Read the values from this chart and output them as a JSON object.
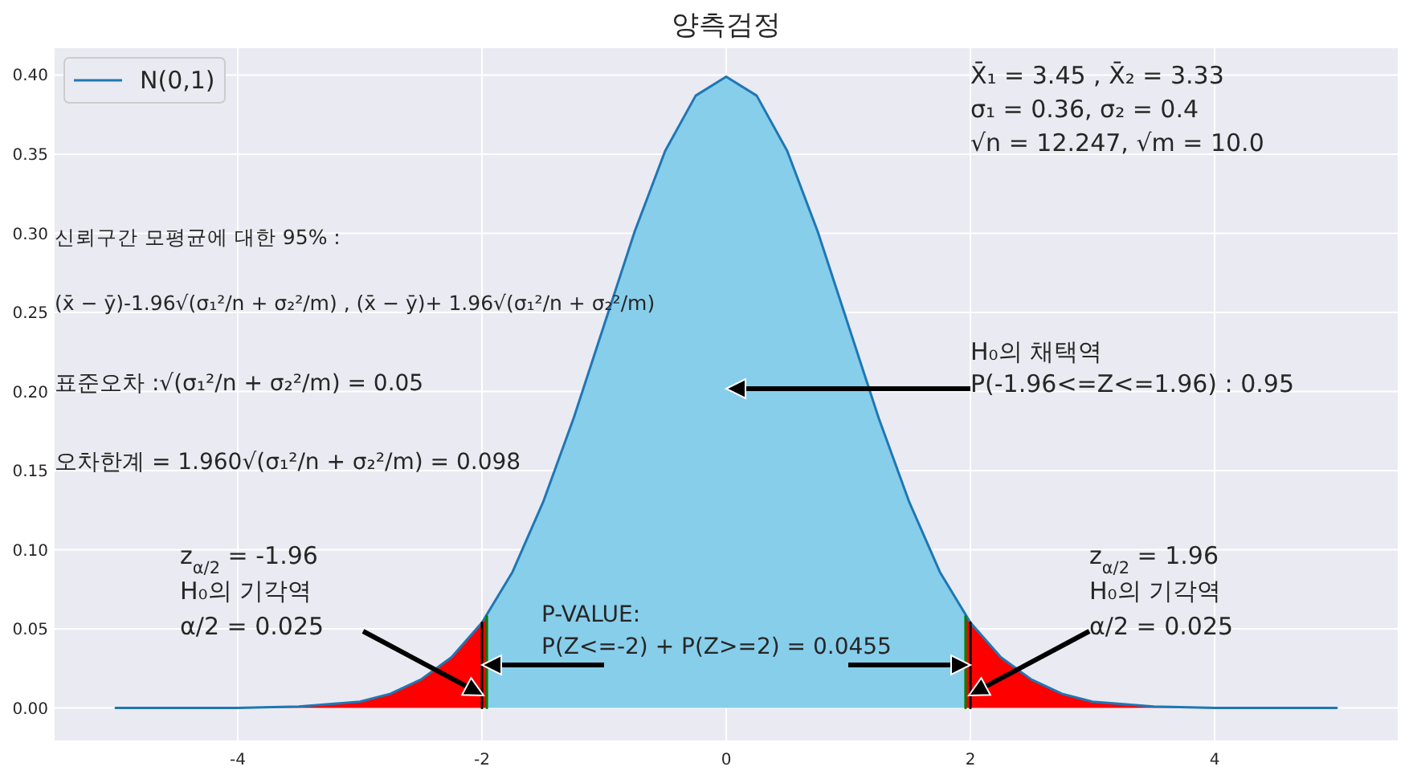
{
  "chart_data": {
    "type": "line",
    "title": "양측검정",
    "xlim": [
      -5.5,
      5.5
    ],
    "xticks": [
      -4,
      -2,
      0,
      2,
      4
    ],
    "ylim": [
      -0.0205,
      0.417
    ],
    "yticks": [
      {
        "value": 0,
        "label": "0.00"
      },
      {
        "value": 0.05,
        "label": "0.05"
      },
      {
        "value": 0.1,
        "label": "0.10"
      },
      {
        "value": 0.15,
        "label": "0.15"
      },
      {
        "value": 0.2,
        "label": "0.20"
      },
      {
        "value": 0.25,
        "label": "0.25"
      },
      {
        "value": 0.3,
        "label": "0.30"
      },
      {
        "value": 0.35,
        "label": "0.35"
      },
      {
        "value": 0.4,
        "label": "0.40"
      }
    ],
    "grid": true,
    "legend": "top left",
    "series": [
      {
        "type": "area",
        "color": "#87ceeb",
        "x": [
          -1.96,
          -1.75,
          -1.5,
          -1.25,
          -1,
          -0.75,
          -0.5,
          -0.25,
          0,
          0.25,
          0.5,
          0.75,
          1,
          1.25,
          1.5,
          1.75,
          1.96
        ],
        "values": [
          0.058,
          0.086,
          0.13,
          0.183,
          0.242,
          0.301,
          0.352,
          0.387,
          0.399,
          0.387,
          0.352,
          0.301,
          0.242,
          0.183,
          0.13,
          0.086,
          0.058
        ]
      },
      {
        "type": "area",
        "color": "#ff0000",
        "x": [
          -5,
          -4,
          -3.5,
          -3,
          -2.75,
          -2.5,
          -2.25,
          -2,
          -1.96
        ],
        "values": [
          0,
          0,
          0.001,
          0.004,
          0.009,
          0.018,
          0.032,
          0.054,
          0.058
        ]
      },
      {
        "type": "area",
        "color": "#ff0000",
        "x": [
          1.96,
          2,
          2.25,
          2.5,
          2.75,
          3,
          3.5,
          4,
          5
        ],
        "values": [
          0.058,
          0.054,
          0.032,
          0.018,
          0.009,
          0.004,
          0.001,
          0,
          0
        ]
      },
      {
        "name": "N(0,1)",
        "color": "#1f77b4",
        "x": [
          -5,
          -4.5,
          -4,
          -3.5,
          -3,
          -2.75,
          -2.5,
          -2.25,
          -2,
          -1.75,
          -1.5,
          -1.25,
          -1,
          -0.75,
          -0.5,
          -0.25,
          0,
          0.25,
          0.5,
          0.75,
          1,
          1.25,
          1.5,
          1.75,
          2,
          2.25,
          2.5,
          2.75,
          3,
          3.5,
          4,
          4.5,
          5
        ],
        "values": [
          0,
          0,
          0,
          0.001,
          0.004,
          0.009,
          0.018,
          0.032,
          0.054,
          0.086,
          0.13,
          0.183,
          0.242,
          0.301,
          0.352,
          0.387,
          0.399,
          0.387,
          0.352,
          0.301,
          0.242,
          0.183,
          0.13,
          0.086,
          0.054,
          0.032,
          0.018,
          0.009,
          0.004,
          0.001,
          0,
          0,
          0
        ]
      },
      {
        "type": "line",
        "color": "#008000",
        "x": [
          -1.96,
          -1.96
        ],
        "values": [
          0,
          0.058
        ]
      },
      {
        "type": "line",
        "color": "#008000",
        "x": [
          1.96,
          1.96
        ],
        "values": [
          0,
          0.058
        ]
      },
      {
        "type": "line",
        "color": "#000000",
        "x": [
          -2,
          -2
        ],
        "values": [
          0,
          0.054
        ]
      },
      {
        "type": "line",
        "color": "#000000",
        "x": [
          2,
          2
        ],
        "values": [
          0,
          0.054
        ]
      }
    ],
    "annotations": [
      "X̄₁ = 3.45 , X̄₂ = 3.33\nσ₁ = 0.36, σ₂ = 0.4\n√n = 12.247, √m = 10.0",
      "신뢰구간 모평균에 대한 95% :\n(x̄ − ȳ)-1.96√(σ₁²/n + σ₂²/m) , (x̄ − ȳ)+ 1.96√(σ₁²/n + σ₂²/m)",
      "표준오차 :√(σ₁²/n + σ₂²/m) = 0.05",
      "오차한계 = 1.960√(σ₁²/n + σ₂²/m) = 0.098",
      "H₀의 채택역\nP(-1.96<=Z<=1.96) : 0.95",
      "z$_{α/2}$ = -1.96\nH₀의 기각역\nα/2 = 0.025",
      "z$_{α/2}$ = 1.96\nH₀의 기각역\nα/2 = 0.025",
      "P-VALUE:\n  P(Z<=-2)  +  P(Z>=2)   = 0.0455"
    ]
  }
}
